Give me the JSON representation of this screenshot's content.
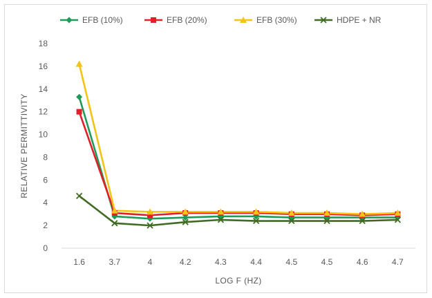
{
  "chart_data": {
    "type": "line",
    "title": "",
    "xlabel": "LOG F (HZ)",
    "ylabel": "RELATIVE PERMITTIVITY",
    "categories": [
      "1.6",
      "3.7",
      "4",
      "4.2",
      "4.3",
      "4.4",
      "4.5",
      "4.5",
      "4.6",
      "4.7"
    ],
    "ylim": [
      0,
      18
    ],
    "yticks": [
      0,
      2,
      4,
      6,
      8,
      10,
      12,
      14,
      16,
      18
    ],
    "grid": false,
    "legend_position": "top",
    "series": [
      {
        "name": "EFB (10%)",
        "color": "#1e9b56",
        "marker": "diamond",
        "values": [
          13.3,
          2.8,
          2.6,
          2.7,
          2.8,
          2.8,
          2.7,
          2.7,
          2.7,
          2.7
        ]
      },
      {
        "name": "EFB (20%)",
        "color": "#e01f26",
        "marker": "square",
        "values": [
          12.0,
          3.1,
          2.9,
          3.1,
          3.1,
          3.1,
          3.0,
          3.0,
          2.9,
          3.0
        ]
      },
      {
        "name": "EFB (30%)",
        "color": "#f3c317",
        "marker": "triangle",
        "values": [
          16.2,
          3.3,
          3.2,
          3.2,
          3.2,
          3.2,
          3.1,
          3.1,
          3.0,
          3.1
        ]
      },
      {
        "name": "HDPE + NR",
        "color": "#3f6b22",
        "marker": "x",
        "values": [
          4.6,
          2.2,
          2.0,
          2.3,
          2.5,
          2.4,
          2.4,
          2.4,
          2.4,
          2.5
        ]
      }
    ]
  }
}
